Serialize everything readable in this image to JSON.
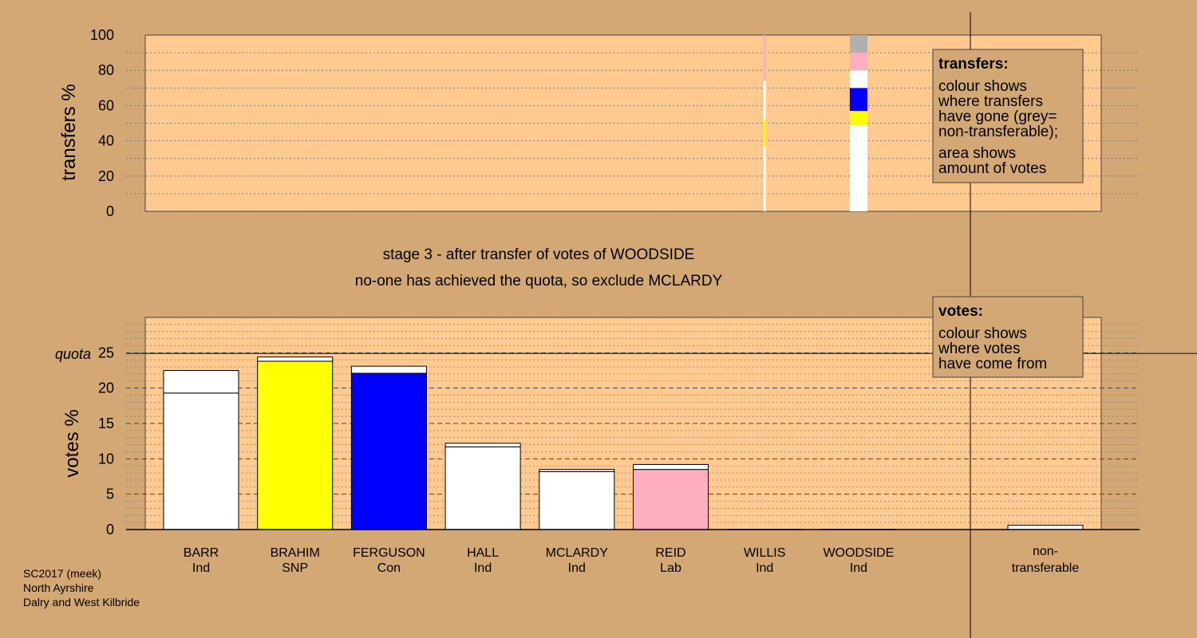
{
  "colors": {
    "background": "#d4a874",
    "panel": "#ffc990",
    "ind": "#ffffff",
    "snp": "#ffff00",
    "con": "#0000ff",
    "lab": "#ffaec0",
    "non_transferable": "#b0b0b0"
  },
  "titles": {
    "line1": "stage 3 - after transfer of votes of WOODSIDE",
    "line2": "no-one has achieved the quota, so exclude MCLARDY"
  },
  "footer": {
    "line1": "SC2017 (meek)",
    "line2": "North Ayrshire",
    "line3": "Dalry and West Kilbride"
  },
  "legend_transfers": {
    "heading": "transfers:",
    "lines": [
      "colour shows",
      "where transfers",
      "have gone (grey=",
      "non-transferable);"
    ],
    "lines2": [
      "area shows",
      "amount of votes"
    ]
  },
  "legend_votes": {
    "heading": "votes:",
    "lines": [
      "colour shows",
      "where votes",
      "have come from"
    ]
  },
  "quota_label": "quota",
  "chart_data": [
    {
      "type": "bar",
      "ylabel": "transfers %",
      "ylim": [
        0,
        100
      ],
      "ticks": [
        0,
        20,
        40,
        60,
        80,
        100
      ],
      "transfer_columns": [
        {
          "from": "WILLIS",
          "segments": [
            {
              "party": "ind",
              "from": 0,
              "to": 37
            },
            {
              "party": "snp",
              "from": 37,
              "to": 52
            },
            {
              "party": "ind",
              "from": 52,
              "to": 74
            },
            {
              "party": "lab",
              "from": 74,
              "to": 100
            }
          ]
        },
        {
          "from": "WOODSIDE",
          "segments": [
            {
              "party": "ind",
              "from": 0,
              "to": 49
            },
            {
              "party": "snp",
              "from": 49,
              "to": 57
            },
            {
              "party": "con",
              "from": 57,
              "to": 70
            },
            {
              "party": "ind",
              "from": 70,
              "to": 80
            },
            {
              "party": "lab",
              "from": 80,
              "to": 90
            },
            {
              "party": "non_transferable",
              "from": 90,
              "to": 100
            }
          ]
        }
      ]
    },
    {
      "type": "bar",
      "ylabel": "votes %",
      "ylim": [
        0,
        30
      ],
      "ticks": [
        0,
        5,
        10,
        15,
        20,
        25
      ],
      "quota": 24.9,
      "categories": [
        "BARR",
        "BRAHIM",
        "FERGUSON",
        "HALL",
        "MCLARDY",
        "REID",
        "WILLIS",
        "WOODSIDE"
      ],
      "parties": [
        "Ind",
        "SNP",
        "Con",
        "Ind",
        "Ind",
        "Lab",
        "Ind",
        "Ind"
      ],
      "party_keys": [
        "ind",
        "snp",
        "con",
        "ind",
        "ind",
        "lab",
        "ind",
        "ind"
      ],
      "first_preference": [
        19.3,
        23.8,
        22.1,
        11.7,
        8.2,
        8.5,
        0,
        0
      ],
      "totals": [
        22.5,
        24.4,
        23.1,
        12.2,
        8.5,
        9.2,
        0,
        0
      ],
      "non_transferable": {
        "label_line1": "non-",
        "label_line2": "transferable",
        "value": 0.6
      }
    }
  ]
}
